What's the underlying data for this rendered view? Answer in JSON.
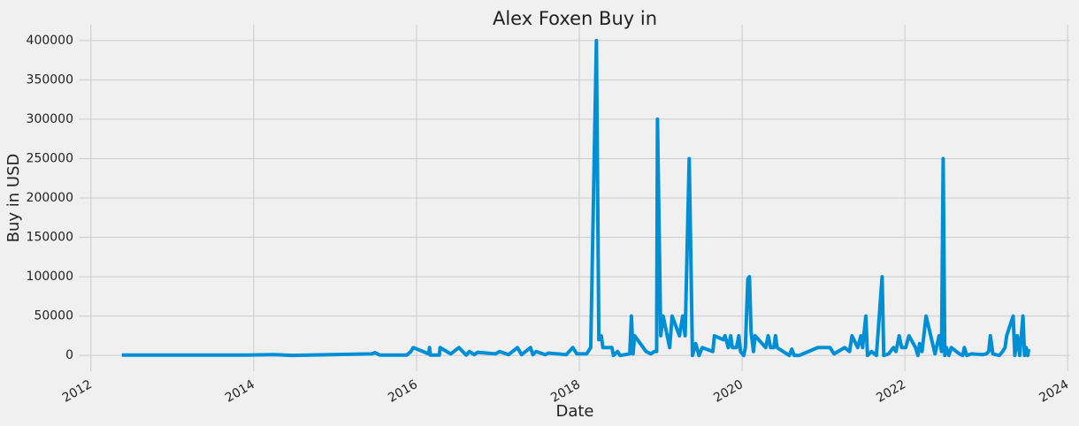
{
  "chart_data": {
    "type": "line",
    "title": "Alex Foxen Buy in",
    "xlabel": "Date",
    "ylabel": "Buy in USD",
    "x": [
      2012.38,
      2013.92,
      2014.25,
      2014.47,
      2015.45,
      2015.49,
      2015.55,
      2015.88,
      2015.93,
      2015.96,
      2016.15,
      2016.16,
      2016.17,
      2016.28,
      2016.29,
      2016.42,
      2016.52,
      2016.61,
      2016.65,
      2016.71,
      2016.75,
      2016.97,
      2017.02,
      2017.13,
      2017.24,
      2017.29,
      2017.4,
      2017.43,
      2017.47,
      2017.58,
      2017.62,
      2017.84,
      2017.92,
      2017.97,
      2018.09,
      2018.14,
      2018.21,
      2018.24,
      2018.27,
      2018.29,
      2018.4,
      2018.42,
      2018.47,
      2018.5,
      2018.62,
      2018.64,
      2018.66,
      2018.68,
      2018.82,
      2018.88,
      2018.92,
      2018.95,
      2018.96,
      2019.0,
      2019.03,
      2019.11,
      2019.14,
      2019.23,
      2019.27,
      2019.3,
      2019.35,
      2019.39,
      2019.43,
      2019.47,
      2019.51,
      2019.64,
      2019.66,
      2019.77,
      2019.79,
      2019.83,
      2019.86,
      2019.88,
      2019.93,
      2019.96,
      2019.98,
      2020.02,
      2020.04,
      2020.07,
      2020.09,
      2020.11,
      2020.14,
      2020.16,
      2020.29,
      2020.32,
      2020.35,
      2020.39,
      2020.41,
      2020.43,
      2020.58,
      2020.61,
      2020.64,
      2020.7,
      2020.93,
      2021.08,
      2021.13,
      2021.26,
      2021.32,
      2021.35,
      2021.42,
      2021.46,
      2021.48,
      2021.52,
      2021.54,
      2021.59,
      2021.65,
      2021.72,
      2021.74,
      2021.8,
      2021.86,
      2021.89,
      2021.93,
      2021.96,
      2022.01,
      2022.05,
      2022.13,
      2022.16,
      2022.18,
      2022.21,
      2022.26,
      2022.37,
      2022.42,
      2022.45,
      2022.47,
      2022.49,
      2022.51,
      2022.54,
      2022.57,
      2022.67,
      2022.71,
      2022.73,
      2022.76,
      2022.82,
      2022.95,
      2023.0,
      2023.03,
      2023.05,
      2023.08,
      2023.16,
      2023.2,
      2023.23,
      2023.25,
      2023.33,
      2023.35,
      2023.38,
      2023.41,
      2023.45,
      2023.47,
      2023.49,
      2023.51,
      2023.52
    ],
    "series": [
      {
        "name": "Buy in",
        "color": "#008fd5",
        "values": [
          500,
          500,
          1000,
          0,
          2000,
          3500,
          500,
          500,
          5000,
          10000,
          2000,
          10000,
          500,
          500,
          10000,
          2000,
          10000,
          500,
          5000,
          1000,
          4000,
          2000,
          5000,
          1000,
          10000,
          1000,
          10000,
          1000,
          5000,
          1000,
          3000,
          1000,
          10000,
          2000,
          2000,
          10000,
          400000,
          20000,
          25000,
          10000,
          10000,
          0,
          5000,
          0,
          2000,
          50000,
          2000,
          25000,
          5000,
          2000,
          5000,
          5000,
          300000,
          25000,
          50000,
          10000,
          50000,
          25000,
          50000,
          25000,
          250000,
          0,
          15000,
          0,
          10000,
          5000,
          25000,
          20000,
          25000,
          10000,
          25000,
          10000,
          10000,
          25000,
          5000,
          0,
          10000,
          97000,
          100000,
          30000,
          5000,
          25000,
          10000,
          25000,
          10000,
          10000,
          25000,
          10000,
          0,
          8000,
          0,
          0,
          10000,
          10000,
          2000,
          10000,
          5000,
          25000,
          10000,
          25000,
          10000,
          50000,
          0,
          5000,
          0,
          100000,
          0,
          2000,
          10000,
          5000,
          25000,
          10000,
          10000,
          25000,
          10000,
          0,
          15000,
          5000,
          50000,
          2000,
          25000,
          5000,
          250000,
          0,
          10000,
          0,
          10000,
          2000,
          0,
          10000,
          0,
          2000,
          1000,
          2000,
          5000,
          25000,
          2000,
          0,
          5000,
          10000,
          25000,
          50000,
          0,
          25000,
          0,
          50000,
          0,
          10000,
          0,
          8000
        ]
      }
    ],
    "xlim": [
      2011.85,
      2024.03
    ],
    "xticks": [
      2012,
      2014,
      2016,
      2018,
      2020,
      2022,
      2024
    ],
    "ylim": [
      -20000,
      420000
    ],
    "yticks": [
      0,
      50000,
      100000,
      150000,
      200000,
      250000,
      300000,
      350000,
      400000
    ],
    "grid": true
  }
}
